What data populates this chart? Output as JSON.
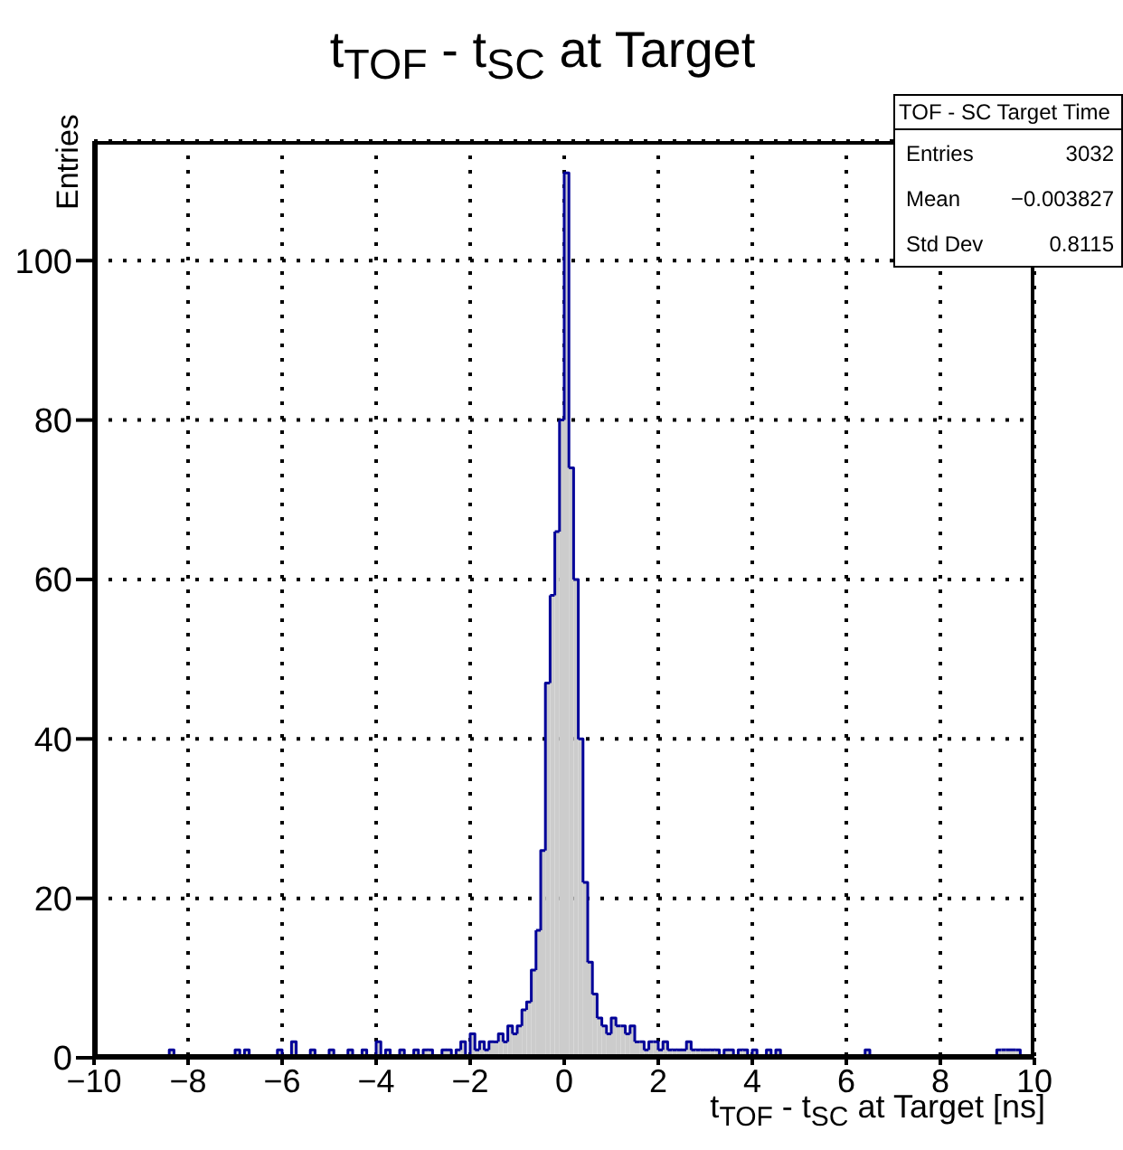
{
  "chart_data": {
    "type": "histogram",
    "title": "t$_{TOF}$ - t$_{SC}$ at Target",
    "xlabel": "t$_{TOF}$ - t$_{SC}$ at Target [ns]",
    "ylabel": "Entries",
    "annotations": [
      "TOF - SC Target Time",
      "Entries",
      "3032",
      "Mean",
      "−0.003827",
      "Std Dev",
      "0.8115"
    ],
    "color": "#cccccc",
    "bins": [
      -10,
      -9.9,
      -9.8,
      -9.7,
      -9.6,
      -9.5,
      -9.4,
      -9.3,
      -9.2,
      -9.1,
      -9,
      -8.9,
      -8.8,
      -8.7,
      -8.6,
      -8.5,
      -8.4,
      -8.3,
      -8.2,
      -8.1,
      -8,
      -7.9,
      -7.8,
      -7.7,
      -7.6,
      -7.5,
      -7.4,
      -7.3,
      -7.2,
      -7.1,
      -7,
      -6.9,
      -6.8,
      -6.7,
      -6.6,
      -6.5,
      -6.4,
      -6.3,
      -6.2,
      -6.1,
      -6,
      -5.9,
      -5.8,
      -5.7,
      -5.6,
      -5.5,
      -5.4,
      -5.3,
      -5.2,
      -5.1,
      -5,
      -4.9,
      -4.8,
      -4.7,
      -4.6,
      -4.5,
      -4.4,
      -4.3,
      -4.2,
      -4.1,
      -4,
      -3.9,
      -3.8,
      -3.7,
      -3.6,
      -3.5,
      -3.4,
      -3.3,
      -3.2,
      -3.1,
      -3,
      -2.9,
      -2.8,
      -2.7,
      -2.6,
      -2.5,
      -2.4,
      -2.3,
      -2.2,
      -2.1,
      -2,
      -1.9,
      -1.8,
      -1.7,
      -1.6,
      -1.5,
      -1.4,
      -1.3,
      -1.2,
      -1.1,
      -1,
      -0.9,
      -0.8,
      -0.7,
      -0.6,
      -0.5,
      -0.4,
      -0.3,
      -0.2,
      -0.1,
      0,
      0.1,
      0.2,
      0.3,
      0.4,
      0.5,
      0.6,
      0.7,
      0.8,
      0.9,
      1,
      1.1,
      1.2,
      1.3,
      1.4,
      1.5,
      1.6,
      1.7,
      1.8,
      1.9,
      2,
      2.1,
      2.2,
      2.3,
      2.4,
      2.5,
      2.6,
      2.7,
      2.8,
      2.9,
      3,
      3.1,
      3.2,
      3.3,
      3.4,
      3.5,
      3.6,
      3.7,
      3.8,
      3.9,
      4,
      4.1,
      4.2,
      4.3,
      4.4,
      4.5,
      4.6,
      4.7,
      4.8,
      4.9,
      5,
      5.1,
      5.2,
      5.3,
      5.4,
      5.5,
      5.6,
      5.7,
      5.8,
      5.9,
      6,
      6.1,
      6.2,
      6.3,
      6.4,
      6.5,
      6.6,
      6.7,
      6.8,
      6.9,
      7,
      7.1,
      7.2,
      7.3,
      7.4,
      7.5,
      7.6,
      7.7,
      7.8,
      7.9,
      8,
      8.1,
      8.2,
      8.3,
      8.4,
      8.5,
      8.6,
      8.7,
      8.8,
      8.9,
      9,
      9.1,
      9.2,
      9.3,
      9.4,
      9.5,
      9.6,
      9.7,
      9.8,
      9.9,
      10
    ],
    "values": [
      0,
      0,
      0,
      0,
      0,
      0,
      0,
      0,
      0,
      0,
      0,
      0,
      0,
      0,
      0,
      0,
      1,
      0,
      0,
      0,
      0,
      0,
      0,
      0,
      0,
      0,
      0,
      0,
      0,
      0,
      1,
      0,
      1,
      0,
      0,
      0,
      0,
      0,
      0,
      1,
      0,
      0,
      2,
      0,
      0,
      0,
      1,
      0,
      0,
      0,
      1,
      0,
      0,
      0,
      1,
      0,
      0,
      1,
      0,
      0,
      2,
      0,
      1,
      0,
      0,
      1,
      0,
      0,
      1,
      0,
      1,
      1,
      0,
      0,
      1,
      1,
      0,
      1,
      2,
      0,
      3,
      1,
      2,
      1,
      2,
      2,
      3,
      2,
      4,
      3,
      4,
      6,
      7,
      11,
      16,
      26,
      47,
      58,
      66,
      80,
      111,
      74,
      60,
      40,
      22,
      12,
      8,
      5,
      4,
      3,
      5,
      4,
      4,
      3,
      4,
      2,
      2,
      1,
      2,
      2,
      1,
      2,
      1,
      1,
      1,
      1,
      2,
      1,
      1,
      1,
      1,
      1,
      1,
      0,
      1,
      1,
      0,
      1,
      1,
      0,
      1,
      0,
      0,
      1,
      0,
      1,
      0,
      0,
      0,
      0,
      0,
      0,
      0,
      0,
      0,
      0,
      0,
      0,
      0,
      0,
      0,
      0,
      0,
      0,
      1,
      0,
      0,
      0,
      0,
      0,
      0,
      0,
      0,
      0,
      0,
      0,
      0,
      0,
      0,
      0,
      0,
      0,
      0,
      0,
      0,
      0,
      0,
      0,
      0,
      0,
      0,
      0,
      1,
      1,
      1,
      1,
      1,
      0,
      0,
      0
    ],
    "xlim": [
      -10,
      10
    ],
    "xticks": [
      {
        "value": -10,
        "label": "−10"
      },
      {
        "value": -8,
        "label": "−8"
      },
      {
        "value": -6,
        "label": "−6"
      },
      {
        "value": -4,
        "label": "−4"
      },
      {
        "value": -2,
        "label": "−2"
      },
      0,
      2,
      4,
      6,
      8,
      10
    ],
    "ylim": [
      0,
      115
    ],
    "yticks": [
      0,
      20,
      40,
      60,
      80,
      100
    ],
    "grid": true
  }
}
